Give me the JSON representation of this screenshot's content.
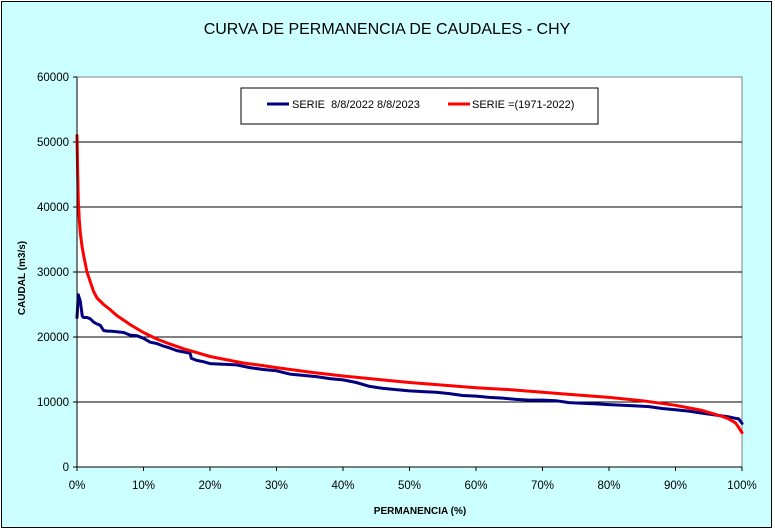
{
  "chart_data": {
    "type": "line",
    "title": "CURVA DE PERMANENCIA DE CAUDALES - CHY",
    "xlabel": "PERMANENCIA (%)",
    "ylabel": "CAUDAL (m3/s)",
    "xlim": [
      0,
      100
    ],
    "ylim": [
      0,
      60000
    ],
    "x_ticks": [
      "0%",
      "10%",
      "20%",
      "30%",
      "40%",
      "50%",
      "60%",
      "70%",
      "80%",
      "90%",
      "100%"
    ],
    "y_ticks": [
      "0",
      "10000",
      "20000",
      "30000",
      "40000",
      "50000",
      "60000"
    ],
    "grid": "horizontal",
    "legend_position": "top-center",
    "series": [
      {
        "name": "SERIE  8/8/2022 8/8/2023",
        "color": "#000080",
        "x": [
          0,
          0.2,
          0.5,
          0.8,
          1,
          1.5,
          2,
          2.5,
          3,
          3.5,
          4,
          4.5,
          5,
          6,
          7,
          8,
          9,
          10,
          11,
          12,
          13,
          14,
          15,
          16,
          17,
          17.2,
          18,
          19,
          20,
          22,
          24,
          26,
          28,
          30,
          32,
          34,
          36,
          38,
          40,
          42,
          44,
          46,
          48,
          50,
          52,
          54,
          56,
          58,
          60,
          62,
          64,
          66,
          68,
          70,
          72,
          74,
          76,
          78,
          80,
          82,
          84,
          86,
          88,
          90,
          92,
          94,
          96,
          98,
          99,
          99.5,
          100
        ],
        "y": [
          23000,
          26500,
          25500,
          23200,
          23000,
          23000,
          22800,
          22300,
          22000,
          21800,
          21000,
          20900,
          20900,
          20800,
          20700,
          20300,
          20200,
          19800,
          19200,
          19000,
          18600,
          18300,
          17900,
          17700,
          17500,
          16700,
          16400,
          16200,
          15900,
          15800,
          15700,
          15300,
          15000,
          14800,
          14300,
          14100,
          13900,
          13600,
          13400,
          13000,
          12400,
          12100,
          11900,
          11700,
          11600,
          11500,
          11300,
          11000,
          10900,
          10700,
          10600,
          10400,
          10300,
          10300,
          10200,
          9900,
          9800,
          9700,
          9600,
          9500,
          9400,
          9300,
          9000,
          8800,
          8600,
          8300,
          8000,
          7700,
          7500,
          7400,
          6700
        ]
      },
      {
        "name": "SERIE =(1971-2022)",
        "color": "#ff0000",
        "x": [
          0,
          0.1,
          0.2,
          0.35,
          0.5,
          0.75,
          1,
          1.5,
          2,
          2.5,
          3,
          4,
          5,
          6,
          7,
          8,
          9,
          10,
          12,
          14,
          16,
          18,
          20,
          22,
          25,
          28,
          30,
          35,
          40,
          45,
          50,
          55,
          60,
          65,
          70,
          75,
          80,
          85,
          90,
          92,
          94,
          96,
          97,
          98,
          99,
          99.5,
          100
        ],
        "y": [
          51000,
          45000,
          41000,
          38000,
          36000,
          34000,
          32500,
          30000,
          28500,
          27000,
          26000,
          25000,
          24200,
          23300,
          22600,
          21900,
          21300,
          20700,
          19700,
          18900,
          18200,
          17600,
          17000,
          16600,
          16000,
          15600,
          15300,
          14600,
          14000,
          13500,
          13000,
          12600,
          12200,
          11900,
          11500,
          11100,
          10700,
          10200,
          9500,
          9100,
          8700,
          8100,
          7800,
          7400,
          6800,
          6100,
          5300
        ]
      }
    ]
  }
}
